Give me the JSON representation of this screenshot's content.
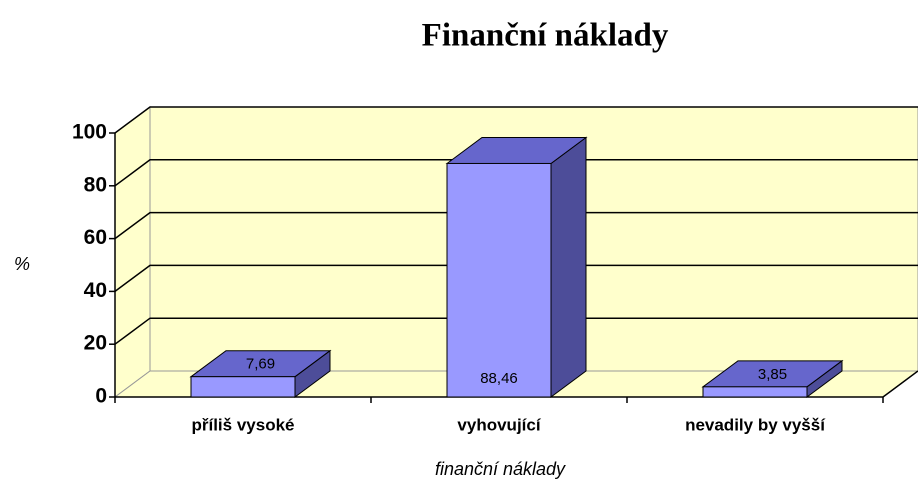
{
  "chart_data": {
    "type": "bar3d",
    "title": "Finanční náklady",
    "x_label": "finanční náklady",
    "y_label": "%",
    "categories": [
      "příliš vysoké",
      "vyhovující",
      "nevadily by vyšší"
    ],
    "values": [
      7.69,
      88.46,
      3.85
    ],
    "value_labels": [
      "7,69",
      "88,46",
      "3,85"
    ],
    "color": "#9999ff",
    "ylim": [
      0,
      100
    ],
    "yticks": [
      0,
      20,
      40,
      60,
      80,
      100
    ],
    "grid": true
  }
}
